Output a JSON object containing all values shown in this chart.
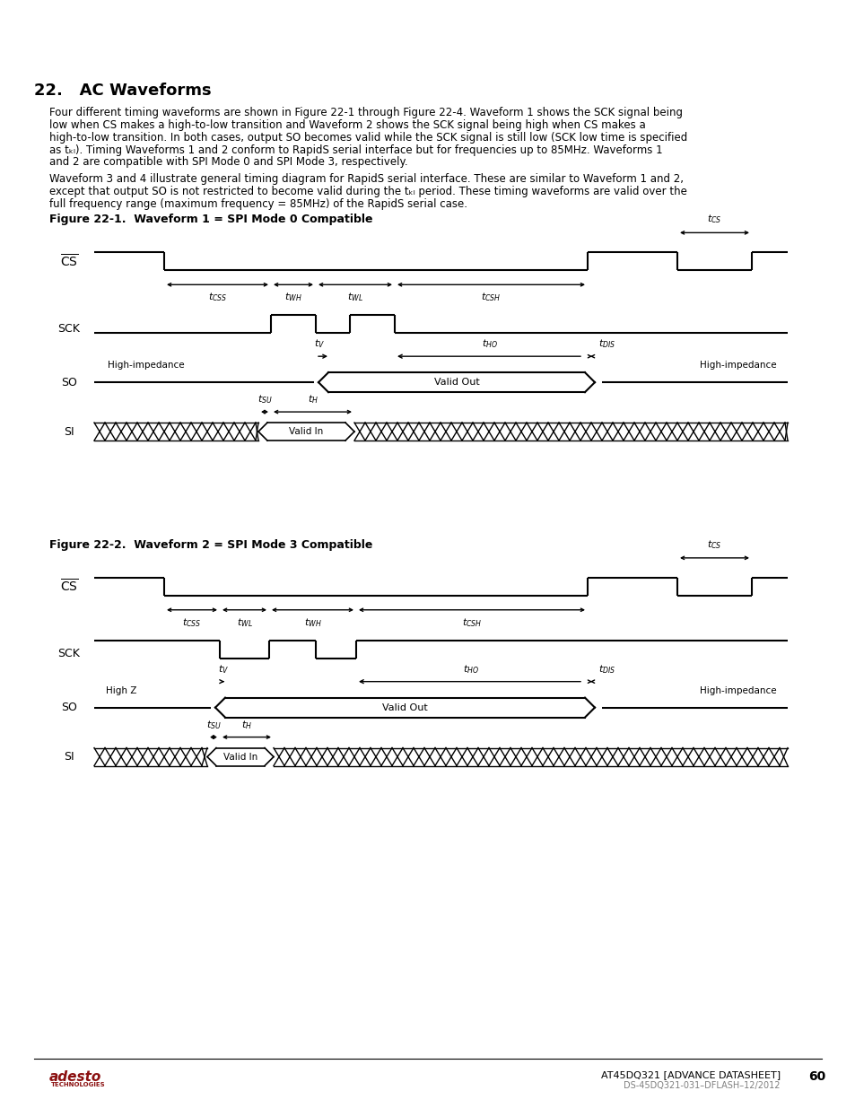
{
  "title": "22.   AC Waveforms",
  "header_color_top": "#8B1010",
  "header_color_bottom": "#C07060",
  "body_bg": "#ffffff",
  "fig1_title": "Figure 22-1.  Waveform 1 = SPI Mode 0 Compatible",
  "fig2_title": "Figure 22-2.  Waveform 2 = SPI Mode 3 Compatible",
  "footer_right1": "AT45DQ321 [ADVANCE DATASHEET]",
  "footer_right2": "DS-45DQ321-031–DFLASH–12/2012",
  "footer_page": "60"
}
